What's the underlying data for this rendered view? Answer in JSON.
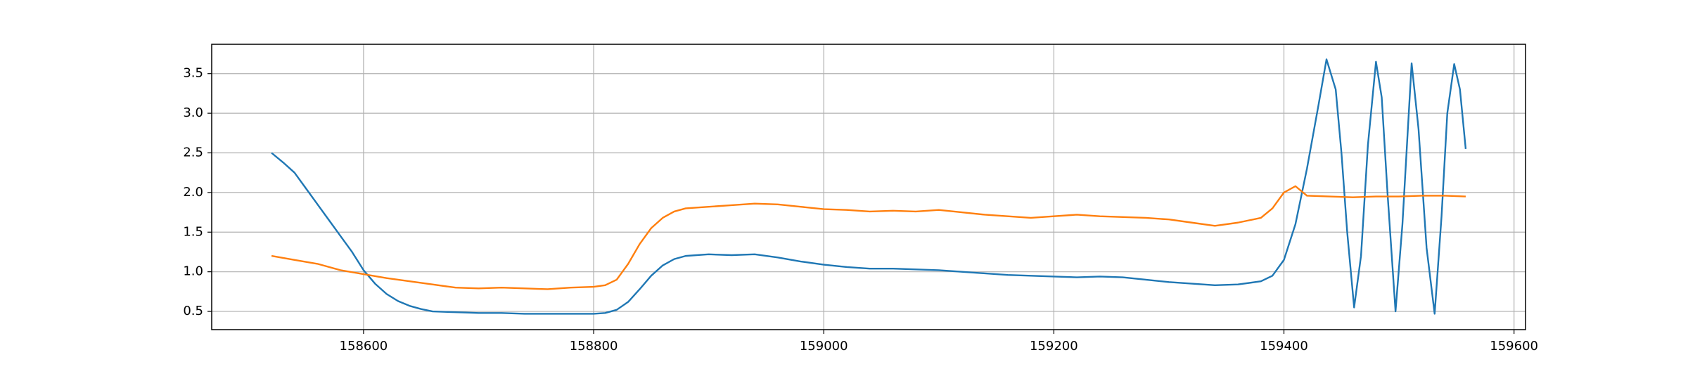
{
  "chart_data": {
    "type": "line",
    "series": [
      {
        "color": "#1f77b4",
        "x": [
          158520,
          158530,
          158540,
          158550,
          158560,
          158570,
          158580,
          158590,
          158600,
          158610,
          158620,
          158630,
          158640,
          158650,
          158660,
          158680,
          158700,
          158720,
          158740,
          158760,
          158780,
          158800,
          158810,
          158820,
          158830,
          158840,
          158850,
          158860,
          158870,
          158880,
          158900,
          158920,
          158940,
          158960,
          158980,
          159000,
          159020,
          159040,
          159060,
          159080,
          159100,
          159120,
          159140,
          159160,
          159180,
          159200,
          159220,
          159240,
          159260,
          159280,
          159300,
          159320,
          159340,
          159360,
          159380,
          159390,
          159400,
          159410,
          159420,
          159430,
          159437,
          159445,
          159450,
          159455,
          159461,
          159467,
          159473,
          159480,
          159485,
          159490,
          159497,
          159503,
          159511,
          159517,
          159524,
          159531,
          159537,
          159542,
          159548,
          159553,
          159558
        ],
        "values": [
          2.5,
          2.38,
          2.25,
          2.05,
          1.85,
          1.65,
          1.45,
          1.25,
          1.02,
          0.85,
          0.72,
          0.63,
          0.57,
          0.53,
          0.5,
          0.49,
          0.48,
          0.48,
          0.47,
          0.47,
          0.47,
          0.47,
          0.48,
          0.52,
          0.62,
          0.78,
          0.95,
          1.08,
          1.16,
          1.2,
          1.22,
          1.21,
          1.22,
          1.18,
          1.13,
          1.09,
          1.06,
          1.04,
          1.04,
          1.03,
          1.02,
          1.0,
          0.98,
          0.96,
          0.95,
          0.94,
          0.93,
          0.94,
          0.93,
          0.9,
          0.87,
          0.85,
          0.83,
          0.84,
          0.88,
          0.95,
          1.15,
          1.6,
          2.3,
          3.1,
          3.68,
          3.3,
          2.5,
          1.5,
          0.55,
          1.2,
          2.6,
          3.65,
          3.2,
          2.0,
          0.5,
          1.6,
          3.63,
          2.8,
          1.3,
          0.47,
          1.7,
          3.0,
          3.62,
          3.3,
          2.55
        ]
      },
      {
        "color": "#ff7f0e",
        "x": [
          158520,
          158540,
          158560,
          158580,
          158600,
          158620,
          158640,
          158660,
          158680,
          158700,
          158720,
          158740,
          158760,
          158780,
          158800,
          158810,
          158820,
          158830,
          158840,
          158850,
          158860,
          158870,
          158880,
          158900,
          158920,
          158940,
          158960,
          158980,
          159000,
          159020,
          159040,
          159060,
          159080,
          159100,
          159120,
          159140,
          159160,
          159180,
          159200,
          159220,
          159240,
          159260,
          159280,
          159300,
          159320,
          159340,
          159360,
          159380,
          159390,
          159400,
          159410,
          159420,
          159440,
          159460,
          159480,
          159500,
          159520,
          159540,
          159558
        ],
        "values": [
          1.2,
          1.15,
          1.1,
          1.02,
          0.97,
          0.92,
          0.88,
          0.84,
          0.8,
          0.79,
          0.8,
          0.79,
          0.78,
          0.8,
          0.81,
          0.83,
          0.9,
          1.1,
          1.35,
          1.55,
          1.68,
          1.76,
          1.8,
          1.82,
          1.84,
          1.86,
          1.85,
          1.82,
          1.79,
          1.78,
          1.76,
          1.77,
          1.76,
          1.78,
          1.75,
          1.72,
          1.7,
          1.68,
          1.7,
          1.72,
          1.7,
          1.69,
          1.68,
          1.66,
          1.62,
          1.58,
          1.62,
          1.68,
          1.8,
          2.0,
          2.08,
          1.96,
          1.95,
          1.94,
          1.95,
          1.95,
          1.96,
          1.96,
          1.95
        ]
      }
    ],
    "xlim": [
      158468,
      159610
    ],
    "ylim": [
      0.27,
      3.87
    ],
    "xticks": [
      158600,
      158800,
      159000,
      159200,
      159400,
      159600
    ],
    "yticks": [
      0.5,
      {
        "value": 1.0,
        "label": "1.0"
      },
      1.5,
      {
        "value": 2.0,
        "label": "2.0"
      },
      2.5,
      {
        "value": 3.0,
        "label": "3.0"
      },
      3.5
    ],
    "grid": true
  }
}
